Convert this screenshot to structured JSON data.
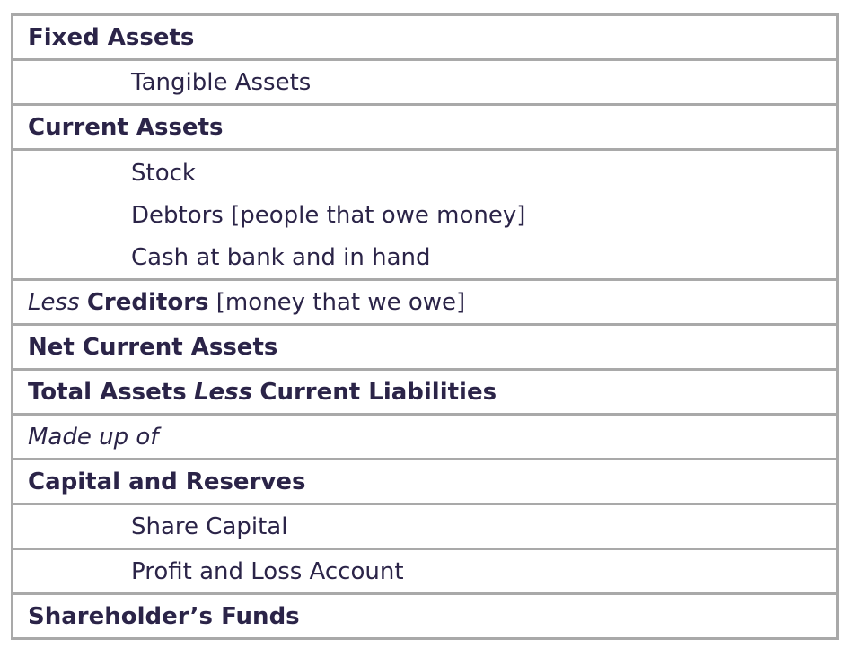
{
  "rows": [
    {
      "type": "heading",
      "text": "Fixed Assets"
    },
    {
      "type": "item",
      "text": "Tangible Assets"
    },
    {
      "type": "heading",
      "text": "Current Assets"
    },
    {
      "type": "items",
      "lines": [
        "Stock",
        "Debtors [people that owe money]",
        "Cash at bank and in hand"
      ]
    },
    {
      "type": "mixed",
      "italic": "Less",
      "bold": "Creditors",
      "normal": "[money that we owe]"
    },
    {
      "type": "heading",
      "text": "Net Current Assets"
    },
    {
      "type": "mixed2",
      "bold1": "Total Assets",
      "italic": "Less",
      "bold2": "Current Liabilities"
    },
    {
      "type": "italic",
      "text": "Made up of"
    },
    {
      "type": "heading",
      "text": "Capital and Reserves"
    },
    {
      "type": "item",
      "text": "Share Capital"
    },
    {
      "type": "item",
      "text": "Profit and Loss Account"
    },
    {
      "type": "heading",
      "text": "Shareholder’s Funds"
    }
  ],
  "colors": {
    "text": "#2b2448",
    "border": "#a9a9a9"
  }
}
